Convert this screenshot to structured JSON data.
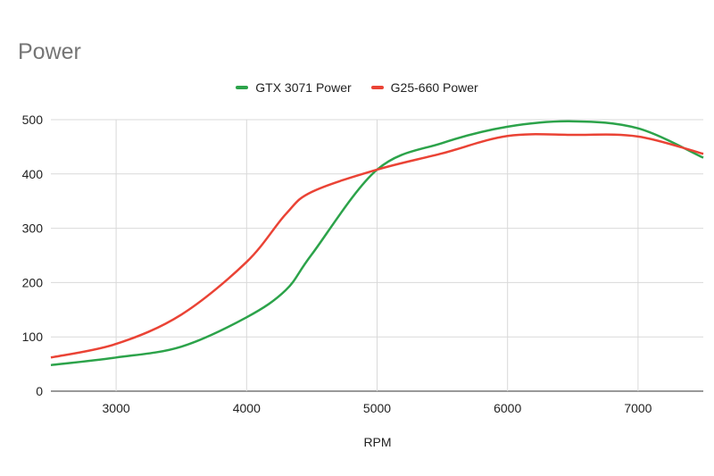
{
  "chart_data": {
    "type": "line",
    "title": "Power",
    "xlabel": "RPM",
    "ylabel": "",
    "xlim": [
      2500,
      7500
    ],
    "ylim": [
      0,
      500
    ],
    "xticks": [
      3000,
      4000,
      5000,
      6000,
      7000
    ],
    "yticks": [
      0,
      100,
      200,
      300,
      400,
      500
    ],
    "grid": true,
    "legend_position": "top",
    "smooth": true,
    "series": [
      {
        "name": "GTX 3071 Power",
        "color": "#2ca34a",
        "x": [
          2500,
          3000,
          3500,
          4000,
          4300,
          4500,
          5000,
          5500,
          6000,
          6500,
          7000,
          7500
        ],
        "y": [
          48,
          62,
          82,
          136,
          186,
          252,
          408,
          457,
          487,
          497,
          484,
          430
        ]
      },
      {
        "name": "G25-660 Power",
        "color": "#ea4335",
        "x": [
          2500,
          3000,
          3500,
          4000,
          4300,
          4500,
          5000,
          5500,
          6000,
          6500,
          7000,
          7500
        ],
        "y": [
          62,
          87,
          141,
          238,
          326,
          367,
          408,
          438,
          470,
          472,
          469,
          437
        ]
      }
    ]
  }
}
